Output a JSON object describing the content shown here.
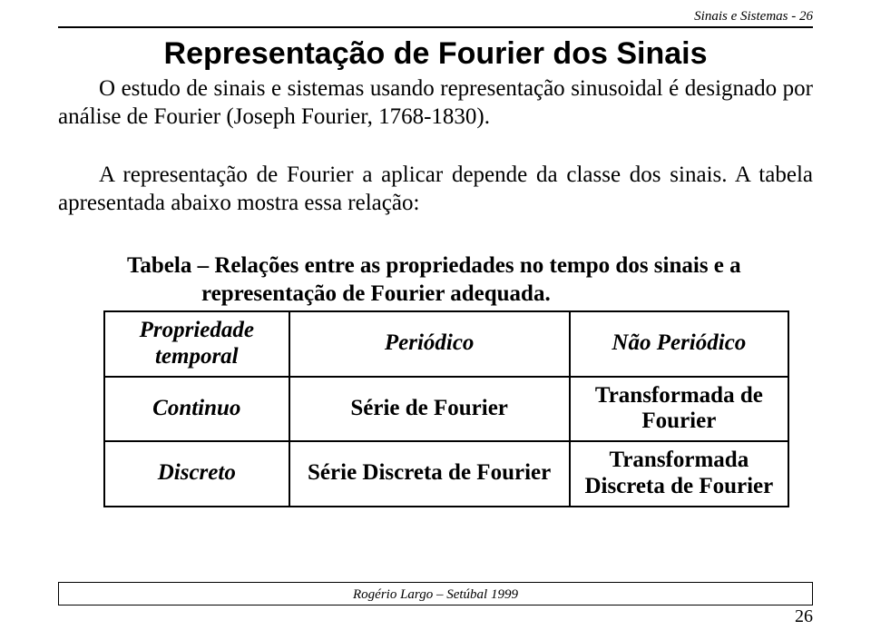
{
  "header": {
    "text": "Sinais e Sistemas - 26"
  },
  "title": "Representação de Fourier dos Sinais",
  "para1": "O estudo de sinais e sistemas usando representação sinusoidal é designado por análise de Fourier (Joseph Fourier, 1768-1830).",
  "para2": "A representação de Fourier a aplicar depende da classe dos sinais. A tabela apresentada abaixo mostra essa relação:",
  "table": {
    "caption_line1": "Tabela – Relações entre as propriedades no tempo dos sinais e a",
    "caption_line2": "representação de Fourier adequada.",
    "rows": [
      {
        "c1": "Propriedade temporal",
        "c2": "Periódico",
        "c3": "Não Periódico"
      },
      {
        "c1": "Continuo",
        "c2": "Série de Fourier",
        "c3": "Transformada de Fourier"
      },
      {
        "c1": "Discreto",
        "c2": "Série Discreta de Fourier",
        "c3": "Transformada Discreta de Fourier"
      }
    ]
  },
  "footer": {
    "text": "Rogério Largo – Setúbal 1999",
    "page_number": "26"
  },
  "colors": {
    "text": "#000000",
    "background": "#ffffff",
    "border": "#000000"
  },
  "fonts": {
    "body_family": "Times New Roman",
    "title_family": "Arial",
    "body_size_pt": 19,
    "title_size_pt": 26,
    "header_footer_size_pt": 11
  }
}
